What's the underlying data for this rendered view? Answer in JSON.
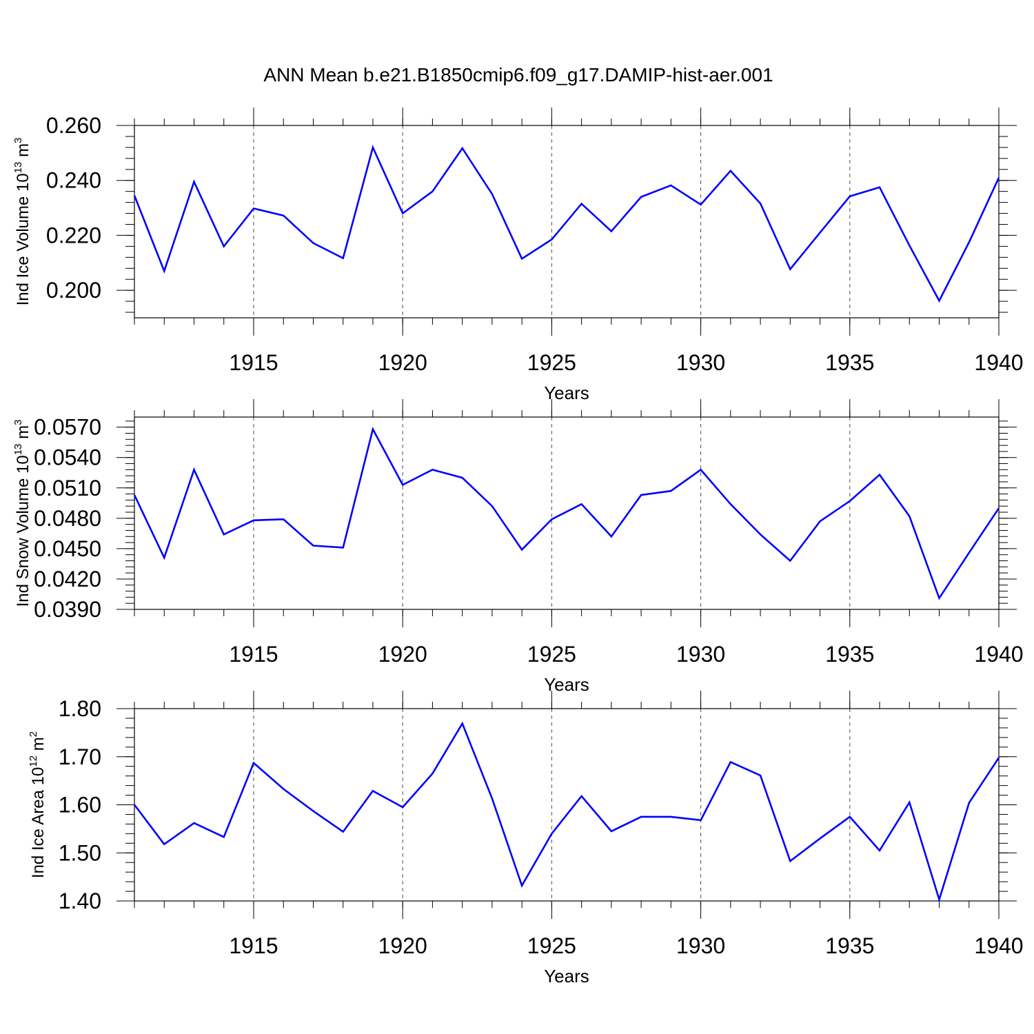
{
  "title": "ANN Mean b.e21.B1850cmip6.f09_g17.DAMIP-hist-aer.001",
  "colors": {
    "line": "#0000ff",
    "axis": "#000000",
    "grid": "#000000"
  },
  "chart_data": [
    {
      "type": "line",
      "name": "ice-volume",
      "ylabel": "Ind Ice Volume 10",
      "ylabel_sup": "13",
      "ylabel_unit": " m",
      "ylabel_unit_sup": "3",
      "xlabel": "Years",
      "xlim": [
        1911,
        1940
      ],
      "ylim": [
        0.19,
        0.26
      ],
      "yticks": [
        0.2,
        0.22,
        0.24,
        0.26
      ],
      "ytick_labels": [
        "0.200",
        "0.220",
        "0.240",
        "0.260"
      ],
      "xticks": [
        1915,
        1920,
        1925,
        1930,
        1935,
        1940
      ],
      "xtick_labels": [
        "1915",
        "1920",
        "1925",
        "1930",
        "1935",
        "1940"
      ],
      "x": [
        1911,
        1912,
        1913,
        1914,
        1915,
        1916,
        1917,
        1918,
        1919,
        1920,
        1921,
        1922,
        1923,
        1924,
        1925,
        1926,
        1927,
        1928,
        1929,
        1930,
        1931,
        1932,
        1933,
        1934,
        1935,
        1936,
        1937,
        1938,
        1939,
        1940
      ],
      "values": [
        0.2345,
        0.207,
        0.2395,
        0.216,
        0.2298,
        0.2272,
        0.2172,
        0.2117,
        0.252,
        0.228,
        0.236,
        0.2517,
        0.235,
        0.2115,
        0.2185,
        0.2315,
        0.2215,
        0.234,
        0.2382,
        0.2312,
        0.2435,
        0.2316,
        0.2077,
        0.221,
        0.2342,
        0.2375,
        0.2163,
        0.1962,
        0.2175,
        0.241
      ]
    },
    {
      "type": "line",
      "name": "snow-volume",
      "ylabel": "Ind Snow Volume 10",
      "ylabel_sup": "13",
      "ylabel_unit": " m",
      "ylabel_unit_sup": "3",
      "xlabel": "Years",
      "xlim": [
        1911,
        1940
      ],
      "ylim": [
        0.039,
        0.058
      ],
      "yticks": [
        0.039,
        0.042,
        0.045,
        0.048,
        0.051,
        0.054,
        0.057
      ],
      "ytick_labels": [
        "0.0390",
        "0.0420",
        "0.0450",
        "0.0480",
        "0.0510",
        "0.0540",
        "0.0570"
      ],
      "xticks": [
        1915,
        1920,
        1925,
        1930,
        1935,
        1940
      ],
      "xtick_labels": [
        "1915",
        "1920",
        "1925",
        "1930",
        "1935",
        "1940"
      ],
      "x": [
        1911,
        1912,
        1913,
        1914,
        1915,
        1916,
        1917,
        1918,
        1919,
        1920,
        1921,
        1922,
        1923,
        1924,
        1925,
        1926,
        1927,
        1928,
        1929,
        1930,
        1931,
        1932,
        1933,
        1934,
        1935,
        1936,
        1937,
        1938,
        1939,
        1940
      ],
      "values": [
        0.0503,
        0.0441,
        0.0528,
        0.0464,
        0.0478,
        0.0479,
        0.0453,
        0.0451,
        0.0568,
        0.0513,
        0.0528,
        0.052,
        0.0492,
        0.0449,
        0.0479,
        0.0494,
        0.0462,
        0.0503,
        0.0507,
        0.0528,
        0.0494,
        0.0464,
        0.0438,
        0.0477,
        0.0497,
        0.0523,
        0.0482,
        0.0401,
        0.0446,
        0.049
      ]
    },
    {
      "type": "line",
      "name": "ice-area",
      "ylabel": "Ind Ice Area 10",
      "ylabel_sup": "12",
      "ylabel_unit": " m",
      "ylabel_unit_sup": "2",
      "xlabel": "Years",
      "xlim": [
        1911,
        1940
      ],
      "ylim": [
        1.4,
        1.8
      ],
      "yticks": [
        1.4,
        1.5,
        1.6,
        1.7,
        1.8
      ],
      "ytick_labels": [
        "1.40",
        "1.50",
        "1.60",
        "1.70",
        "1.80"
      ],
      "xticks": [
        1915,
        1920,
        1925,
        1930,
        1935,
        1940
      ],
      "xtick_labels": [
        "1915",
        "1920",
        "1925",
        "1930",
        "1935",
        "1940"
      ],
      "x": [
        1911,
        1912,
        1913,
        1914,
        1915,
        1916,
        1917,
        1918,
        1919,
        1920,
        1921,
        1922,
        1923,
        1924,
        1925,
        1926,
        1927,
        1928,
        1929,
        1930,
        1931,
        1932,
        1933,
        1934,
        1935,
        1936,
        1937,
        1938,
        1939,
        1940
      ],
      "values": [
        1.6,
        1.518,
        1.562,
        1.533,
        1.687,
        1.633,
        1.587,
        1.544,
        1.629,
        1.595,
        1.665,
        1.769,
        1.613,
        1.432,
        1.54,
        1.618,
        1.545,
        1.575,
        1.575,
        1.568,
        1.689,
        1.661,
        1.483,
        1.53,
        1.575,
        1.505,
        1.605,
        1.403,
        1.604,
        1.698
      ]
    }
  ]
}
